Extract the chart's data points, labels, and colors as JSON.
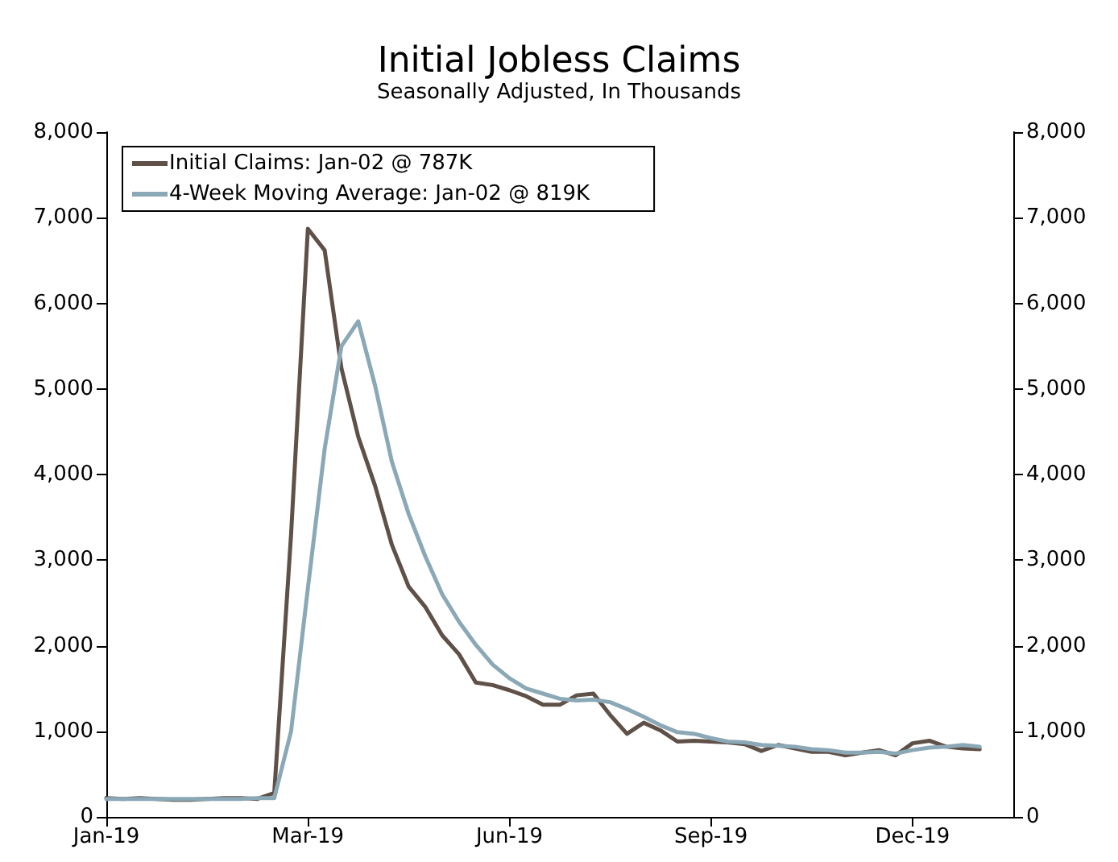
{
  "chart_data": {
    "type": "line",
    "title": "Initial Jobless Claims",
    "subtitle": "Seasonally Adjusted, In Thousands",
    "categories": [
      "Jan-19",
      null,
      null,
      null,
      null,
      null,
      null,
      null,
      null,
      null,
      null,
      null,
      "Mar-19",
      null,
      null,
      null,
      null,
      null,
      null,
      null,
      null,
      null,
      null,
      null,
      "Jun-19",
      null,
      null,
      null,
      null,
      null,
      null,
      null,
      null,
      null,
      null,
      null,
      "Sep-19",
      null,
      null,
      null,
      null,
      null,
      null,
      null,
      null,
      null,
      null,
      null,
      "Dec-19",
      null,
      null,
      null,
      null,
      null,
      null
    ],
    "series": [
      {
        "name": "Initial Claims: Jan-02 @ 787K",
        "color": "#5f5048",
        "values": [
          220,
          210,
          220,
          210,
          200,
          200,
          210,
          220,
          220,
          210,
          280,
          3300,
          6870,
          6620,
          5240,
          4440,
          3870,
          3180,
          2690,
          2450,
          2120,
          1900,
          1570,
          1540,
          1480,
          1410,
          1310,
          1310,
          1420,
          1440,
          1190,
          970,
          1100,
          1010,
          880,
          890,
          880,
          870,
          850,
          770,
          840,
          800,
          760,
          760,
          720,
          750,
          780,
          720,
          860,
          890,
          820,
          800,
          790,
          null,
          null
        ]
      },
      {
        "name": "4-Week Moving Average: Jan-02 @ 819K",
        "color": "#8ba8b7",
        "values": [
          210,
          210,
          210,
          210,
          210,
          210,
          210,
          210,
          210,
          220,
          220,
          1000,
          2670,
          4300,
          5500,
          5790,
          5040,
          4150,
          3540,
          3040,
          2600,
          2280,
          2010,
          1780,
          1620,
          1500,
          1440,
          1380,
          1360,
          1370,
          1340,
          1260,
          1170,
          1070,
          990,
          970,
          920,
          880,
          870,
          840,
          830,
          820,
          790,
          780,
          750,
          750,
          760,
          740,
          780,
          810,
          820,
          840,
          820,
          null,
          null
        ]
      }
    ],
    "ylim": [
      0,
      8000
    ],
    "yticks": [
      0,
      {
        "value": 1000,
        "label": "1,000"
      },
      {
        "value": 2000,
        "label": "2,000"
      },
      {
        "value": 3000,
        "label": "3,000"
      },
      {
        "value": 4000,
        "label": "4,000"
      },
      {
        "value": 5000,
        "label": "5,000"
      },
      {
        "value": 6000,
        "label": "6,000"
      },
      {
        "value": 7000,
        "label": "7,000"
      },
      {
        "value": 8000,
        "label": "8,000"
      }
    ],
    "y2lim": [
      0,
      8000
    ],
    "y2ticks": [
      0,
      {
        "value": 1000,
        "label": "1,000"
      },
      {
        "value": 2000,
        "label": "2,000"
      },
      {
        "value": 3000,
        "label": "3,000"
      },
      {
        "value": 4000,
        "label": "4,000"
      },
      {
        "value": 5000,
        "label": "5,000"
      },
      {
        "value": 6000,
        "label": "6,000"
      },
      {
        "value": 7000,
        "label": "7,000"
      },
      {
        "value": 8000,
        "label": "8,000"
      }
    ],
    "grid": false,
    "legend": "top left",
    "marker": "none",
    "line_style": "solid"
  }
}
